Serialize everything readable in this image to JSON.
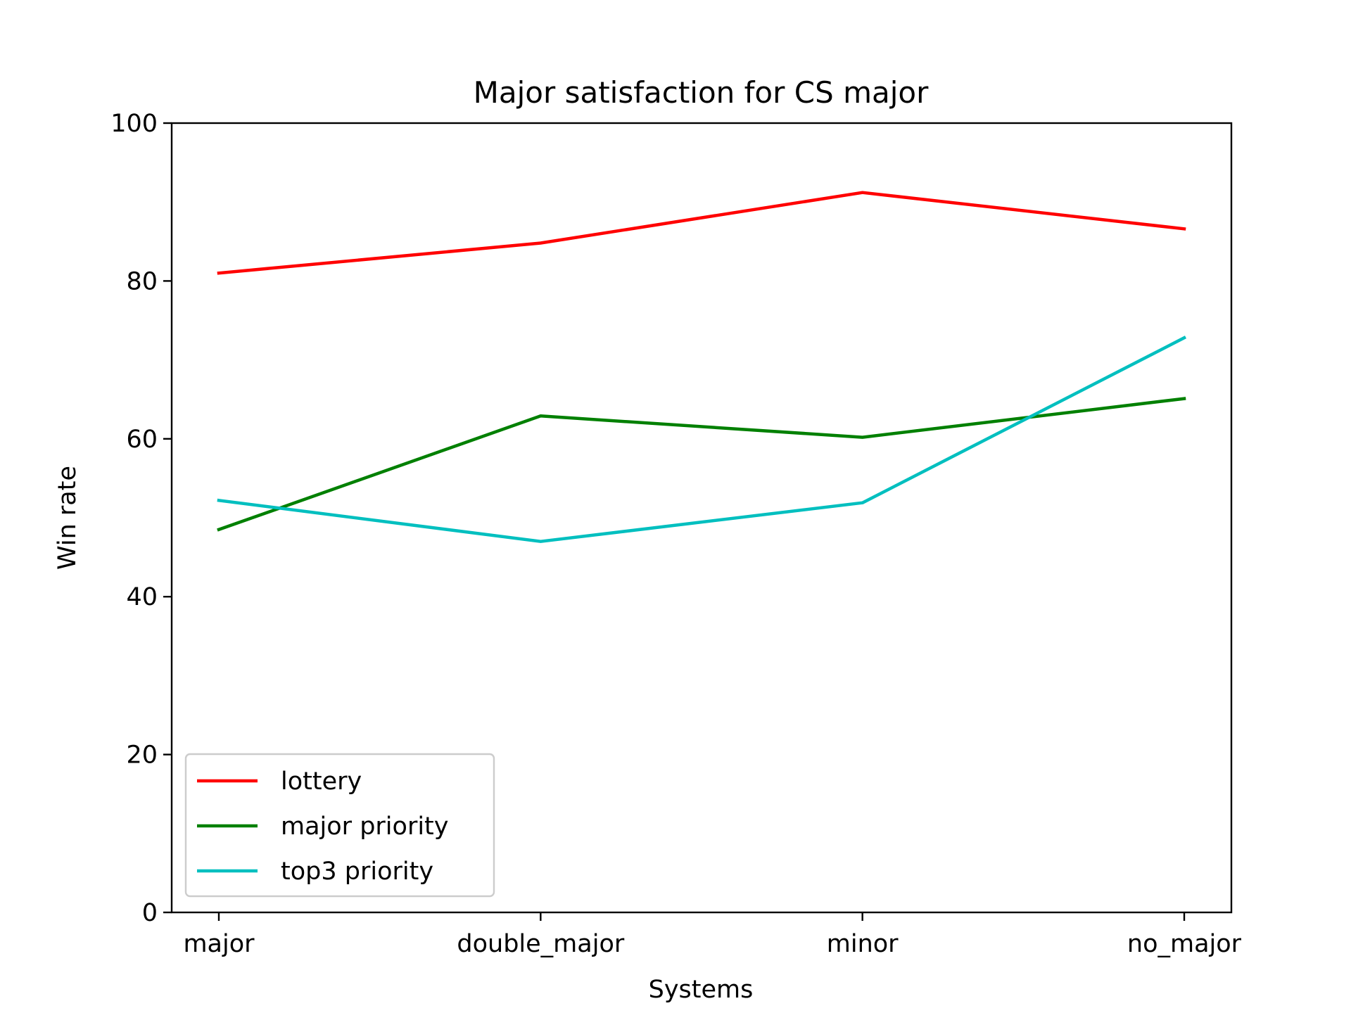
{
  "chart_data": {
    "type": "line",
    "title": "Major satisfaction for CS major",
    "xlabel": "Systems",
    "ylabel": "Win rate",
    "categories": [
      "major",
      "double_major",
      "minor",
      "no_major"
    ],
    "ylim": [
      0,
      100
    ],
    "yticks": [
      0,
      20,
      40,
      60,
      80,
      100
    ],
    "grid": false,
    "legend_position": "lower-left",
    "series": [
      {
        "name": "lottery",
        "color": "#ff0000",
        "values": [
          81.0,
          84.8,
          91.2,
          86.6
        ]
      },
      {
        "name": "major priority",
        "color": "#008000",
        "values": [
          48.5,
          62.9,
          60.2,
          65.1
        ]
      },
      {
        "name": "top3 priority",
        "color": "#00bfbf",
        "values": [
          52.2,
          47.0,
          51.9,
          72.8
        ]
      }
    ]
  }
}
